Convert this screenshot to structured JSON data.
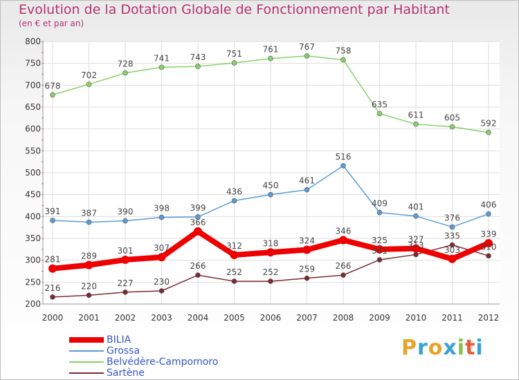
{
  "title": "Evolution de la Dotation Globale de Fonctionnement par Habitant",
  "subtitle": "(en € et par an)",
  "brand": "Proxiti",
  "chart_data": {
    "type": "line",
    "x": [
      "2000",
      "2001",
      "2002",
      "2003",
      "2004",
      "2005",
      "2006",
      "2007",
      "2008",
      "2009",
      "2010",
      "2011",
      "2012"
    ],
    "ylim": [
      200,
      800
    ],
    "yticks": [
      200,
      250,
      300,
      350,
      400,
      450,
      500,
      550,
      600,
      650,
      700,
      750,
      800
    ],
    "legend_position": "bottom-left",
    "series": [
      {
        "name": "BILIA",
        "color": "#ee0000",
        "values": [
          281,
          289,
          301,
          307,
          366,
          312,
          318,
          324,
          346,
          325,
          327,
          303,
          339
        ],
        "point_labels": [
          "281",
          "289",
          "301",
          "307",
          "366",
          "312",
          "318",
          "324",
          "346",
          "325",
          "327",
          "303",
          "339"
        ]
      },
      {
        "name": "Grossa",
        "color": "#5b9bd5",
        "values": [
          391,
          387,
          390,
          398,
          399,
          436,
          450,
          461,
          516,
          409,
          401,
          376,
          406
        ],
        "point_labels": [
          "391",
          "387",
          "390",
          "398",
          "399",
          "436",
          "450",
          "461",
          "516",
          "409",
          "401",
          "376",
          "406"
        ]
      },
      {
        "name": "Belvédère-Campomoro",
        "color": "#88d06a",
        "values": [
          678,
          702,
          728,
          741,
          743,
          751,
          761,
          767,
          758,
          635,
          611,
          605,
          592
        ],
        "point_labels": [
          "678",
          "702",
          "728",
          "741",
          "743",
          "751",
          "761",
          "767",
          "758",
          "635",
          "611",
          "605",
          "592"
        ]
      },
      {
        "name": "Sartène",
        "color": "#7a2a30",
        "values": [
          216,
          220,
          227,
          230,
          266,
          252,
          252,
          259,
          266,
          301,
          313,
          335,
          310
        ],
        "point_labels": [
          "216",
          "220",
          "227",
          "230",
          "266",
          "252",
          "252",
          "259",
          "266",
          "301",
          "313",
          "335",
          "310"
        ]
      }
    ]
  }
}
